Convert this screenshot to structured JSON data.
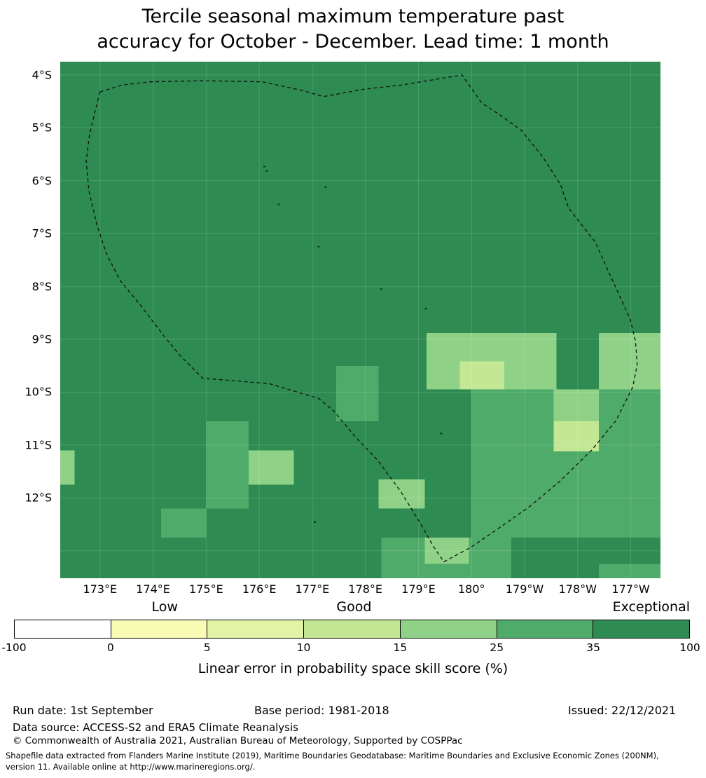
{
  "title": {
    "line1": "Tercile seasonal maximum temperature past",
    "line2": "accuracy for October - December. Lead time: 1 month"
  },
  "chart_data": {
    "type": "heatmap",
    "title": "Tercile seasonal maximum temperature past accuracy for October - December. Lead time: 1 month",
    "units": "%",
    "extent": {
      "lon_min": 172.25,
      "lon_max": 183.56,
      "lat_min": 3.75,
      "lat_max": 13.52
    },
    "x_ticks": [
      {
        "label": "173°E",
        "lon": 173
      },
      {
        "label": "174°E",
        "lon": 174
      },
      {
        "label": "175°E",
        "lon": 175
      },
      {
        "label": "176°E",
        "lon": 176
      },
      {
        "label": "177°E",
        "lon": 177
      },
      {
        "label": "178°E",
        "lon": 178
      },
      {
        "label": "179°E",
        "lon": 179
      },
      {
        "label": "180°",
        "lon": 180
      },
      {
        "label": "179°W",
        "lon": 181
      },
      {
        "label": "178°W",
        "lon": 182
      },
      {
        "label": "177°W",
        "lon": 183
      }
    ],
    "y_ticks": [
      {
        "label": "4°S",
        "lat": 4
      },
      {
        "label": "5°S",
        "lat": 5
      },
      {
        "label": "6°S",
        "lat": 6
      },
      {
        "label": "7°S",
        "lat": 7
      },
      {
        "label": "8°S",
        "lat": 8
      },
      {
        "label": "9°S",
        "lat": 9
      },
      {
        "label": "10°S",
        "lat": 10
      },
      {
        "label": "11°S",
        "lat": 11
      },
      {
        "label": "12°S",
        "lat": 12
      }
    ],
    "levels": [
      {
        "range": "-100 to 0",
        "color": "#ffffff"
      },
      {
        "range": "0 to 5",
        "color": "#f7fbb4"
      },
      {
        "range": "5 to 10",
        "color": "#e3f3a6"
      },
      {
        "range": "10 to 15",
        "color": "#c3e794"
      },
      {
        "range": "15 to 25",
        "color": "#8fd287"
      },
      {
        "range": "25 to 35",
        "color": "#4fab6a"
      },
      {
        "range": "35 to 100",
        "color": "#2e8b51"
      }
    ],
    "base_level_index": 6,
    "patches": [
      {
        "lon": [
          179.15,
          181.6
        ],
        "lat": [
          8.88,
          9.95
        ],
        "level": 4
      },
      {
        "lon": [
          182.4,
          183.56
        ],
        "lat": [
          8.88,
          9.95
        ],
        "level": 4
      },
      {
        "lon": [
          179.78,
          180.62
        ],
        "lat": [
          9.42,
          9.95
        ],
        "level": 3
      },
      {
        "lon": [
          180.0,
          183.56
        ],
        "lat": [
          9.95,
          12.75
        ],
        "level": 5
      },
      {
        "lon": [
          181.55,
          182.4
        ],
        "lat": [
          9.95,
          10.55
        ],
        "level": 4
      },
      {
        "lon": [
          181.55,
          182.4
        ],
        "lat": [
          10.55,
          11.12
        ],
        "level": 3
      },
      {
        "lon": [
          177.45,
          178.25
        ],
        "lat": [
          9.5,
          10.55
        ],
        "level": 5
      },
      {
        "lon": [
          175.0,
          175.8
        ],
        "lat": [
          10.55,
          12.2
        ],
        "level": 5
      },
      {
        "lon": [
          175.8,
          176.65
        ],
        "lat": [
          11.1,
          11.75
        ],
        "level": 4
      },
      {
        "lon": [
          172.25,
          172.52
        ],
        "lat": [
          11.1,
          11.75
        ],
        "level": 4
      },
      {
        "lon": [
          174.15,
          175.0
        ],
        "lat": [
          12.2,
          12.75
        ],
        "level": 5
      },
      {
        "lon": [
          178.25,
          179.12
        ],
        "lat": [
          11.65,
          12.2
        ],
        "level": 4
      },
      {
        "lon": [
          178.3,
          180.75
        ],
        "lat": [
          12.75,
          13.52
        ],
        "level": 5
      },
      {
        "lon": [
          179.12,
          179.95
        ],
        "lat": [
          12.75,
          13.25
        ],
        "level": 4
      },
      {
        "lon": [
          182.4,
          183.56
        ],
        "lat": [
          13.25,
          13.52
        ],
        "level": 5
      }
    ],
    "boundary": [
      [
        173.0,
        4.32
      ],
      [
        173.42,
        4.19
      ],
      [
        173.95,
        4.13
      ],
      [
        174.94,
        4.11
      ],
      [
        176.06,
        4.13
      ],
      [
        176.79,
        4.29
      ],
      [
        177.21,
        4.41
      ],
      [
        177.98,
        4.27
      ],
      [
        178.7,
        4.19
      ],
      [
        179.35,
        4.08
      ],
      [
        179.82,
        4.0
      ],
      [
        180.19,
        4.53
      ],
      [
        180.51,
        4.74
      ],
      [
        180.94,
        5.05
      ],
      [
        181.34,
        5.55
      ],
      [
        181.67,
        6.06
      ],
      [
        181.83,
        6.52
      ],
      [
        182.33,
        7.16
      ],
      [
        182.72,
        8.03
      ],
      [
        182.99,
        8.62
      ],
      [
        183.09,
        9.04
      ],
      [
        183.12,
        9.48
      ],
      [
        183.04,
        9.9
      ],
      [
        182.72,
        10.54
      ],
      [
        182.26,
        11.1
      ],
      [
        181.67,
        11.68
      ],
      [
        181.1,
        12.16
      ],
      [
        180.52,
        12.57
      ],
      [
        179.98,
        12.94
      ],
      [
        179.66,
        13.11
      ],
      [
        179.48,
        13.21
      ],
      [
        179.29,
        12.93
      ],
      [
        179.03,
        12.47
      ],
      [
        178.66,
        11.87
      ],
      [
        178.24,
        11.3
      ],
      [
        177.78,
        10.81
      ],
      [
        177.4,
        10.35
      ],
      [
        177.12,
        10.12
      ],
      [
        176.19,
        9.84
      ],
      [
        175.34,
        9.77
      ],
      [
        174.94,
        9.74
      ],
      [
        174.52,
        9.32
      ],
      [
        174.22,
        8.96
      ],
      [
        173.79,
        8.39
      ],
      [
        173.38,
        7.89
      ],
      [
        173.12,
        7.38
      ],
      [
        172.94,
        6.83
      ],
      [
        172.79,
        6.19
      ],
      [
        172.74,
        5.63
      ],
      [
        172.8,
        5.14
      ],
      [
        172.91,
        4.68
      ]
    ],
    "islands": [
      [
        176.1,
        5.73
      ],
      [
        176.14,
        5.82
      ],
      [
        177.25,
        6.12
      ],
      [
        176.37,
        6.45
      ],
      [
        177.12,
        7.25
      ],
      [
        178.3,
        8.05
      ],
      [
        179.14,
        8.42
      ],
      [
        179.43,
        10.78
      ],
      [
        177.05,
        12.46
      ]
    ],
    "grid": {
      "on": true,
      "color": "rgba(255,255,255,0.15)"
    },
    "boundary_style": {
      "color": "#111111",
      "dash": "5,4"
    },
    "colorbar": {
      "ticks": [
        "-100",
        "0",
        "5",
        "10",
        "15",
        "25",
        "35",
        "100"
      ],
      "region_labels": {
        "low": "Low",
        "good": "Good",
        "exceptional": "Exceptional"
      },
      "caption": "Linear error in probability space skill score (%)"
    }
  },
  "footer": {
    "run_date": "Run date: 1st September",
    "base_period": "Base period: 1981-2018",
    "issued": "Issued: 22/12/2021",
    "data_source": "Data source: ACCESS-S2 and ERA5 Climate Reanalysis",
    "copyright": "© Commonwealth of Australia 2021, Australian Bureau of Meteorology, Supported by COSPPac",
    "shapefile_line1": "Shapefile data extracted from Flanders Marine Institute (2019), Maritime Boundaries Geodatabase: Maritime Boundaries and Exclusive Economic Zones (200NM),",
    "shapefile_line2": "version 11. Available online at http://www.marineregions.org/."
  }
}
